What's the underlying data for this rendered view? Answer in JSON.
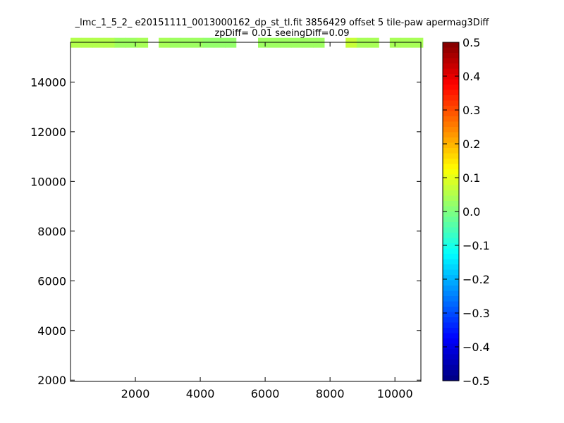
{
  "chart_data": {
    "type": "heatmap",
    "title_lines": [
      "_lmc_1_5_2_ e20151111_0013000162_dp_st_tl.fit 3856429 offset 5 tile-paw apermag3Diff",
      "zpDiff= 0.01 seeingDiff=0.09"
    ],
    "xlim": [
      0,
      10800
    ],
    "ylim": [
      1950,
      15600
    ],
    "x_ticks": [
      2000,
      4000,
      6000,
      8000,
      10000
    ],
    "y_ticks": [
      2000,
      4000,
      6000,
      8000,
      10000,
      12000,
      14000
    ],
    "colorbar": {
      "colormap": "jet",
      "range": [
        -0.5,
        0.5
      ],
      "ticks": [
        "0.5",
        "0.4",
        "0.3",
        "0.2",
        "0.1",
        "0.0",
        "−0.1",
        "−0.2",
        "−0.3",
        "−0.4",
        "−0.5"
      ]
    },
    "cell_size": [
      340,
      380
    ],
    "cells": [
      [
        2330,
        0.05
      ],
      [
        2330,
        0.05
      ],
      [
        2330,
        0.05
      ],
      [
        2330,
        0.05
      ],
      [
        2330,
        0.05
      ],
      [
        2330,
        0.05
      ],
      [
        2330,
        0.05
      ],
      [
        2330,
        0.05
      ],
      [
        2330,
        0.05
      ],
      [
        2330,
        0.05
      ],
      [
        0,
        15400,
        0.05
      ],
      [
        340,
        15400,
        0.05
      ],
      [
        680,
        15400,
        0.05
      ],
      [
        1020,
        15400,
        0.05
      ],
      [
        1360,
        15400,
        0.03
      ],
      [
        1700,
        15400,
        0.03
      ],
      [
        2040,
        15400,
        0.04
      ],
      [
        2720,
        15400,
        0.04
      ],
      [
        3060,
        15400,
        0.03
      ],
      [
        3400,
        15400,
        0.03
      ],
      [
        3740,
        15400,
        0.03
      ],
      [
        4080,
        15400,
        0.02
      ],
      [
        4420,
        15400,
        0.02
      ],
      [
        4760,
        15400,
        0.02
      ],
      [
        5780,
        15400,
        0.03
      ],
      [
        6120,
        15400,
        0.03
      ],
      [
        6460,
        15400,
        0.03
      ],
      [
        6800,
        15400,
        0.03
      ],
      [
        7140,
        15400,
        0.03
      ],
      [
        7480,
        15400,
        0.03
      ],
      [
        8480,
        15400,
        0.07
      ],
      [
        8820,
        15400,
        0.04
      ],
      [
        9160,
        15400,
        0.04
      ],
      [
        9840,
        15400,
        0.04
      ],
      [
        10180,
        15400,
        0.04
      ],
      [
        10520,
        15400,
        0.04
      ]
    ]
  }
}
